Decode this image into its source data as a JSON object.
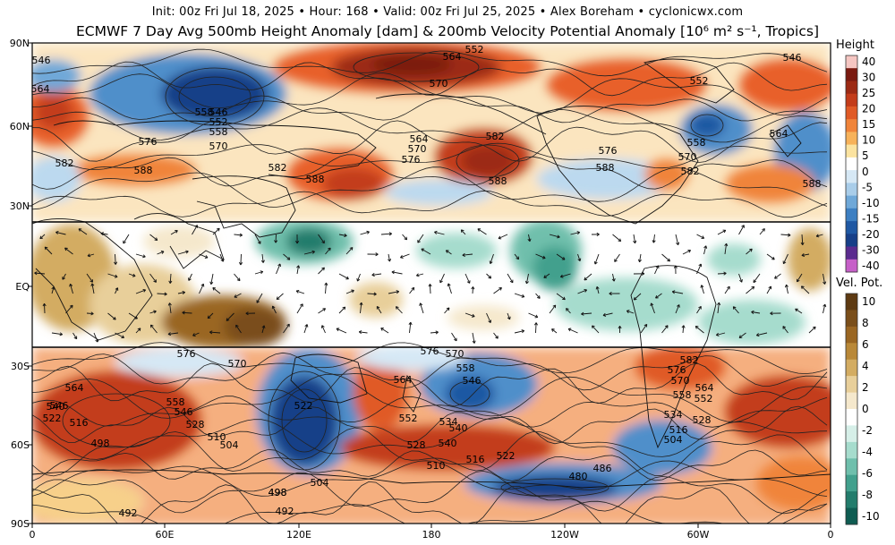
{
  "header": {
    "line1": "Init: 00z Fri Jul 18, 2025 • Hour: 168 • Valid: 00z Fri Jul 25, 2025 • Alex Boreham • cyclonicwx.com",
    "line2": "ECMWF 7 Day Avg 500mb Height Anomaly [dam] & 200mb Velocity Potential Anomaly [10⁶ m² s⁻¹, Tropics]"
  },
  "map": {
    "lat_labels": [
      "90N",
      "60N",
      "30N",
      "EQ",
      "30S",
      "60S",
      "90S"
    ],
    "lon_labels": [
      "0",
      "60E",
      "120E",
      "180",
      "120W",
      "60W",
      "0"
    ],
    "contour_labels": [
      "546",
      "564",
      "558",
      "564",
      "570",
      "546",
      "552",
      "558",
      "570",
      "576",
      "582",
      "588",
      "582",
      "588",
      "564",
      "570",
      "576",
      "582",
      "588",
      "576",
      "588",
      "552",
      "558",
      "570",
      "582",
      "564",
      "588",
      "546",
      "552",
      "576",
      "570",
      "564",
      "570",
      "576",
      "558",
      "546",
      "564",
      "582",
      "576",
      "570",
      "558",
      "552",
      "564",
      "546",
      "540",
      "534",
      "528",
      "522",
      "516",
      "498",
      "540",
      "522",
      "558",
      "546",
      "528",
      "510",
      "504",
      "552",
      "528",
      "510",
      "540",
      "534",
      "516",
      "522",
      "504",
      "498",
      "492",
      "492",
      "486",
      "480",
      "498",
      "504",
      "516"
    ],
    "colors": {
      "strong_positive": "#7a1a10",
      "positive": "#e8602a",
      "weak_positive": "#f7d08a",
      "weak_negative": "#bcd9ef",
      "negative": "#4f8fca",
      "strong_negative": "#173f88",
      "vp_positive": "#b87a2c",
      "vp_negative": "#3a9a88"
    }
  },
  "colorbars": {
    "height": {
      "title": "Height",
      "labels": [
        "40",
        "30",
        "25",
        "20",
        "15",
        "10",
        "5",
        "0",
        "-5",
        "-10",
        "-15",
        "-20",
        "-30",
        "-40"
      ],
      "colors": [
        "#f5c6c2",
        "#7a1a10",
        "#9c2a14",
        "#c33c1a",
        "#e05a26",
        "#f0843a",
        "#f7b25a",
        "#fbe3a0",
        "#ffffff",
        "#d6e8f5",
        "#a9cde9",
        "#6fa8d8",
        "#3d7fc2",
        "#1f58a3",
        "#173f88",
        "#5b2b8f",
        "#c65fc8"
      ]
    },
    "vp": {
      "title": "Vel. Pot.",
      "labels": [
        "10",
        "8",
        "6",
        "4",
        "2",
        "0",
        "-2",
        "-4",
        "-6",
        "-8",
        "-10"
      ],
      "colors": [
        "#5e3a12",
        "#7a4e1a",
        "#9a6622",
        "#b98838",
        "#d3ac62",
        "#e8cf9a",
        "#f5e8cc",
        "#ffffff",
        "#d6efe8",
        "#a6dccd",
        "#6fbfac",
        "#42a08d",
        "#237c6c",
        "#0f5c52"
      ]
    }
  }
}
